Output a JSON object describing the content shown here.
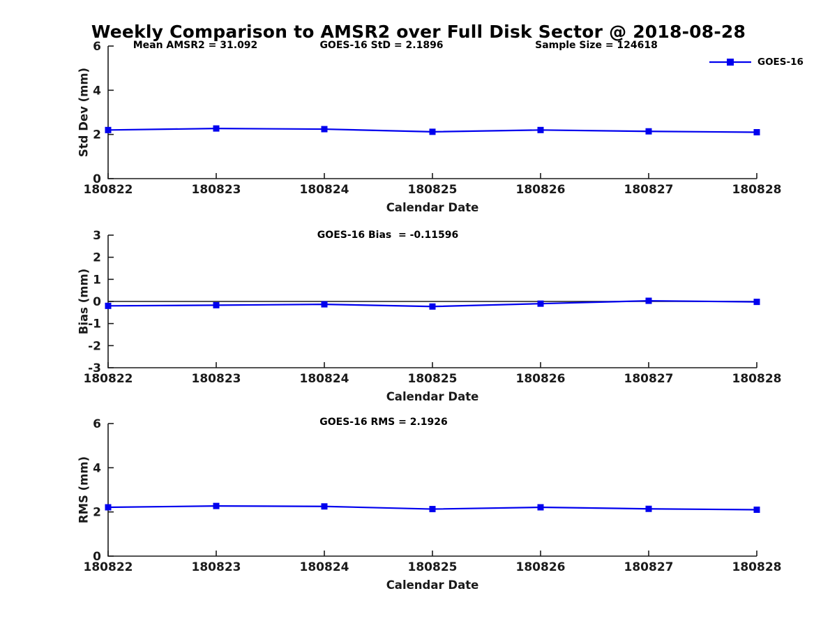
{
  "figure": {
    "title": "Weekly Comparison to AMSR2 over Full Disk Sector @ 2018-08-28",
    "background_color": "#ffffff",
    "axis_color": "#1a1a1a",
    "accent_blue": "#0000ee"
  },
  "legend": {
    "label": "GOES-16",
    "color": "#0000ee",
    "marker": "square",
    "position": "top-right",
    "box": false
  },
  "chart_data": [
    {
      "id": "std-dev",
      "type": "line",
      "annotations": [
        "Mean AMSR2 = 31.092",
        "GOES-16 StD = 2.1896",
        "Sample Size = 124618"
      ],
      "categories": [
        "180822",
        "180823",
        "180824",
        "180825",
        "180826",
        "180827",
        "180828"
      ],
      "series": [
        {
          "name": "GOES-16",
          "color": "#0000ee",
          "marker": "square",
          "values": [
            2.2,
            2.27,
            2.24,
            2.12,
            2.2,
            2.14,
            2.1
          ]
        }
      ],
      "xlabel": "Calendar Date",
      "ylabel": "Std Dev (mm)",
      "ylim": [
        0,
        6
      ],
      "yticks": [
        0,
        2,
        4,
        6
      ],
      "grid": false,
      "zero_line": false,
      "legend_position": "top-right"
    },
    {
      "id": "bias",
      "type": "line",
      "annotations": [
        "GOES-16 Bias  = -0.11596"
      ],
      "categories": [
        "180822",
        "180823",
        "180824",
        "180825",
        "180826",
        "180827",
        "180828"
      ],
      "series": [
        {
          "name": "GOES-16",
          "color": "#0000ee",
          "marker": "square",
          "values": [
            -0.2,
            -0.17,
            -0.13,
            -0.23,
            -0.1,
            0.03,
            -0.02
          ]
        }
      ],
      "xlabel": "Calendar Date",
      "ylabel": "Bias (mm)",
      "ylim": [
        -3,
        3
      ],
      "yticks": [
        -3,
        -2,
        -1,
        0,
        1,
        2,
        3
      ],
      "grid": false,
      "zero_line": true,
      "legend_position": "none"
    },
    {
      "id": "rms",
      "type": "line",
      "annotations": [
        "GOES-16 RMS = 2.1926"
      ],
      "categories": [
        "180822",
        "180823",
        "180824",
        "180825",
        "180826",
        "180827",
        "180828"
      ],
      "series": [
        {
          "name": "GOES-16",
          "color": "#0000ee",
          "marker": "square",
          "values": [
            2.21,
            2.27,
            2.25,
            2.13,
            2.21,
            2.14,
            2.1
          ]
        }
      ],
      "xlabel": "Calendar Date",
      "ylabel": "RMS (mm)",
      "ylim": [
        0,
        6
      ],
      "yticks": [
        0,
        2,
        4,
        6
      ],
      "grid": false,
      "zero_line": false,
      "legend_position": "none"
    }
  ]
}
